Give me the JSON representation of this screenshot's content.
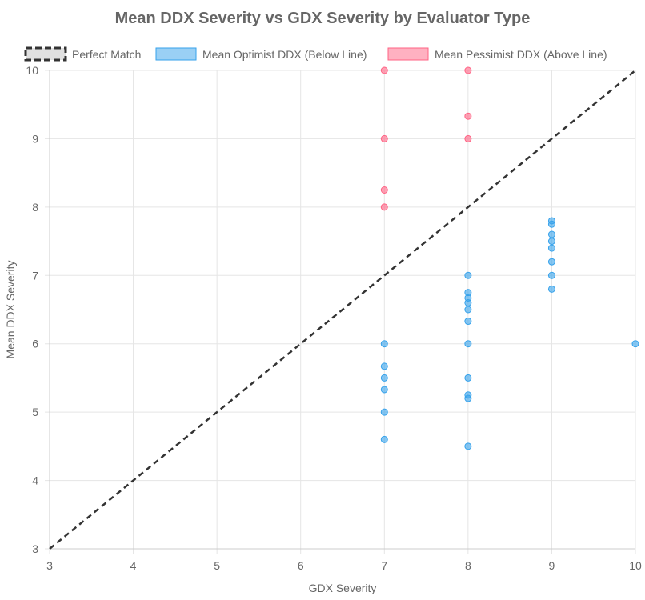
{
  "chart_data": {
    "type": "scatter",
    "title": "Mean DDX Severity vs GDX Severity by Evaluator Type",
    "xlabel": "GDX Severity",
    "ylabel": "Mean DDX Severity",
    "xlim": [
      3,
      10
    ],
    "ylim": [
      3,
      10
    ],
    "x_ticks": [
      "3",
      "4",
      "5",
      "6",
      "7",
      "8",
      "9",
      "10"
    ],
    "y_ticks": [
      "3",
      "4",
      "5",
      "6",
      "7",
      "8",
      "9",
      "10"
    ],
    "grid": true,
    "legend_position": "top",
    "reference_line": {
      "name": "Perfect Match",
      "points": [
        [
          3,
          3
        ],
        [
          10,
          10
        ]
      ],
      "color": "#333333",
      "dashed": true
    },
    "series": [
      {
        "name": "Mean Optimist DDX (Below Line)",
        "color": "#36a2eb",
        "fill": "#9ad0f5",
        "points": [
          [
            7,
            6.0
          ],
          [
            7,
            5.67
          ],
          [
            7,
            5.5
          ],
          [
            7,
            5.33
          ],
          [
            7,
            5.0
          ],
          [
            7,
            4.6
          ],
          [
            8,
            7.0
          ],
          [
            8,
            6.75
          ],
          [
            8,
            6.67
          ],
          [
            8,
            6.6
          ],
          [
            8,
            6.5
          ],
          [
            8,
            6.33
          ],
          [
            8,
            6.0
          ],
          [
            8,
            5.5
          ],
          [
            8,
            5.25
          ],
          [
            8,
            5.2
          ],
          [
            8,
            4.5
          ],
          [
            9,
            7.8
          ],
          [
            9,
            7.75
          ],
          [
            9,
            7.6
          ],
          [
            9,
            7.5
          ],
          [
            9,
            7.4
          ],
          [
            9,
            7.2
          ],
          [
            9,
            7.0
          ],
          [
            9,
            6.8
          ],
          [
            10,
            6.0
          ]
        ]
      },
      {
        "name": "Mean Pessimist DDX (Above Line)",
        "color": "#ff6384",
        "fill": "#ffb1c1",
        "points": [
          [
            7,
            10.0
          ],
          [
            7,
            9.0
          ],
          [
            7,
            8.25
          ],
          [
            7,
            8.0
          ],
          [
            8,
            10.0
          ],
          [
            8,
            9.33
          ],
          [
            8,
            9.0
          ]
        ]
      }
    ]
  }
}
